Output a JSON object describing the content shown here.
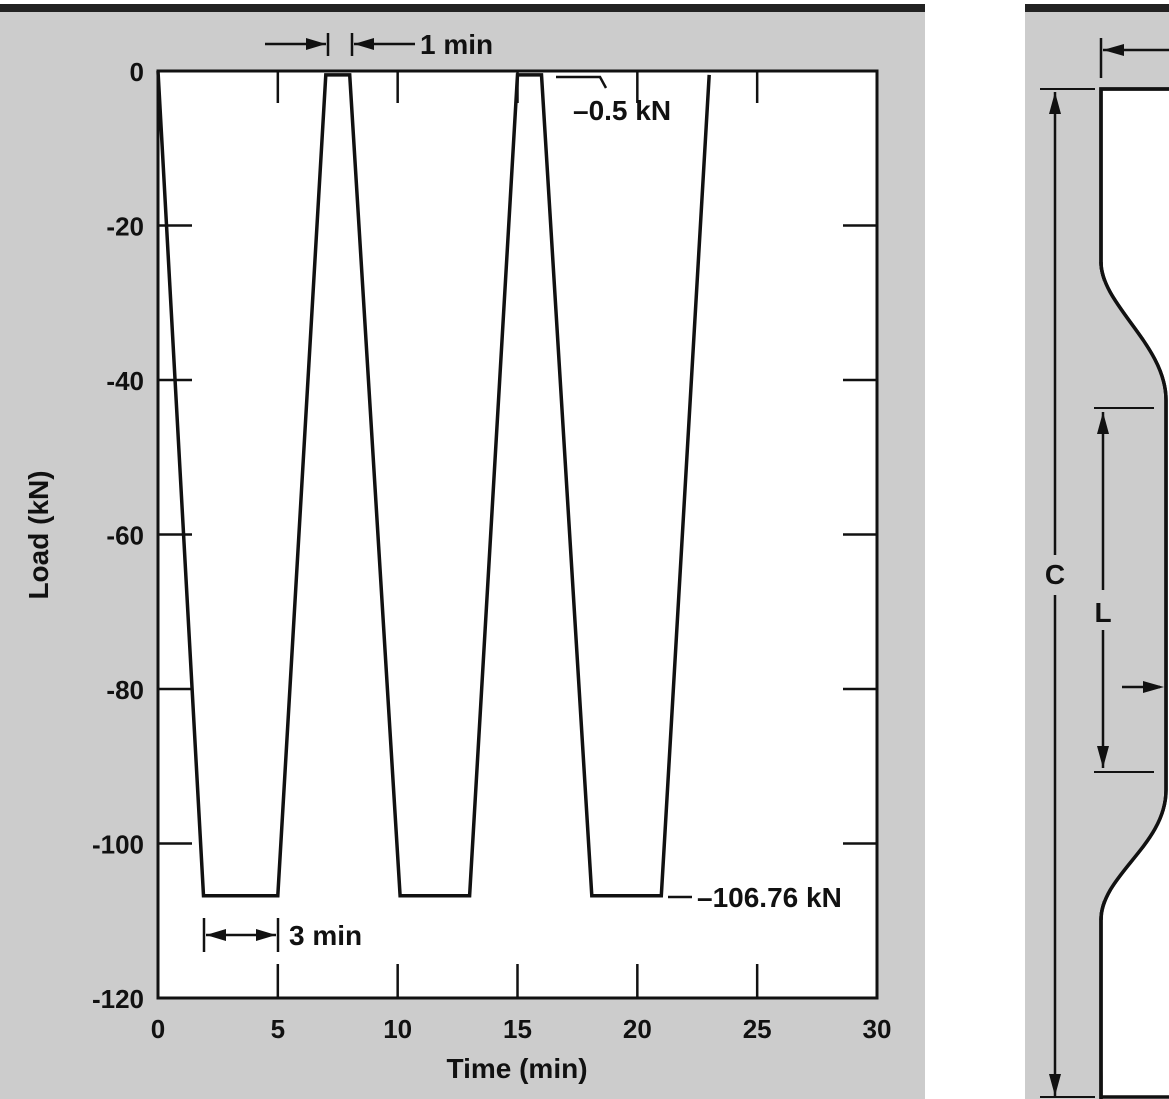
{
  "chart_data": {
    "type": "line",
    "title": "",
    "xlabel": "Time (min)",
    "ylabel": "Load (kN)",
    "xlim": [
      0,
      30
    ],
    "ylim": [
      -120,
      0
    ],
    "x_ticks": [
      0,
      5,
      10,
      15,
      20,
      25,
      30
    ],
    "y_ticks": [
      0,
      -20,
      -40,
      -60,
      -80,
      -100,
      -120
    ],
    "x_tick_labels": [
      "0",
      "5",
      "10",
      "15",
      "20",
      "25",
      "30"
    ],
    "y_tick_labels": [
      "0",
      "-20",
      "-40",
      "-60",
      "-80",
      "-100",
      "-120"
    ],
    "grid": false,
    "series": [
      {
        "x": [
          0,
          1.9,
          5,
          7,
          8,
          10.1,
          13,
          15,
          16,
          18.1,
          21,
          23
        ],
        "y": [
          0,
          -106.76,
          -106.76,
          -0.5,
          -0.5,
          -106.76,
          -106.76,
          -0.5,
          -0.5,
          -106.76,
          -106.76,
          -0.5
        ]
      }
    ],
    "annotations": [
      {
        "text": "1 min",
        "x": [
          7,
          8
        ],
        "y": 3.5,
        "kind": "interval"
      },
      {
        "text": "–0.5 kN",
        "x": 16,
        "y": -0.5,
        "kind": "level"
      },
      {
        "text": "3 min",
        "x": [
          1.9,
          5
        ],
        "y": -113,
        "kind": "interval"
      },
      {
        "text": "–106.76 kN",
        "x": 21,
        "y": -106.76,
        "kind": "level"
      }
    ]
  },
  "side_diagram": {
    "labels": {
      "overall_length": "C",
      "gauge_length": "L"
    }
  }
}
